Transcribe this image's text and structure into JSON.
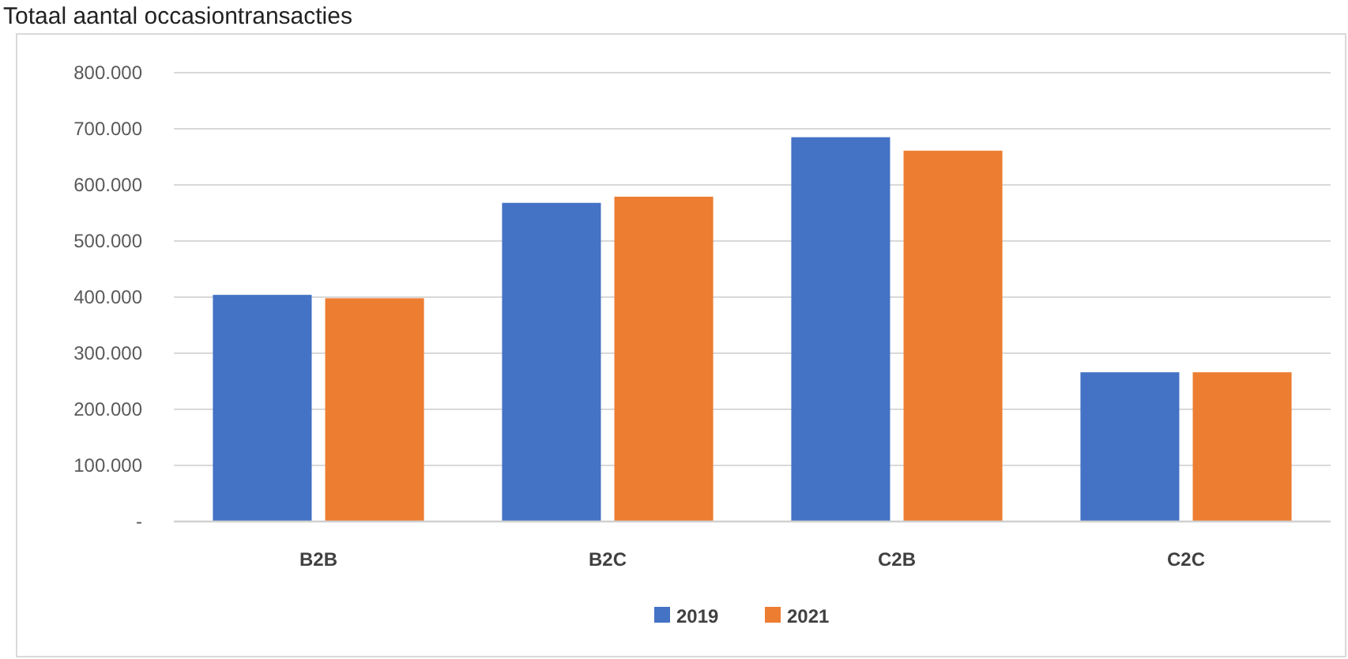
{
  "chart_data": {
    "type": "bar",
    "title": "Totaal aantal occasiontransacties",
    "categories": [
      "B2B",
      "B2C",
      "C2B",
      "C2C"
    ],
    "series": [
      {
        "name": "2019",
        "color": "#4472c4",
        "values": [
          404000,
          568000,
          685000,
          266000
        ]
      },
      {
        "name": "2021",
        "color": "#ed7d31",
        "values": [
          398000,
          579000,
          661000,
          266000
        ]
      }
    ],
    "ylim": [
      0,
      800000
    ],
    "yticks": [
      {
        "value": 0,
        "label": "-"
      },
      {
        "value": 100000,
        "label": "100.000"
      },
      {
        "value": 200000,
        "label": "200.000"
      },
      {
        "value": 300000,
        "label": "300.000"
      },
      {
        "value": 400000,
        "label": "400.000"
      },
      {
        "value": 500000,
        "label": "500.000"
      },
      {
        "value": 600000,
        "label": "600.000"
      },
      {
        "value": 700000,
        "label": "700.000"
      },
      {
        "value": 800000,
        "label": "800.000"
      }
    ],
    "grid": "y",
    "legend": "bottom"
  }
}
